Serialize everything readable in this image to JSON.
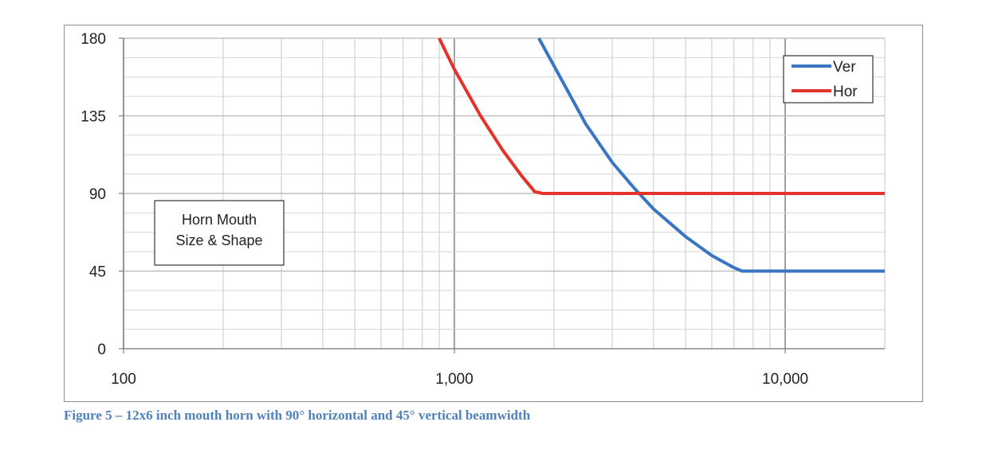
{
  "chart_data": {
    "type": "line",
    "x_scale": "log",
    "xlim": [
      100,
      20000
    ],
    "ylim": [
      0,
      180
    ],
    "grid": true,
    "legend_position": "top-right",
    "x_ticks": [
      {
        "value": 100,
        "label": "100"
      },
      {
        "value": 1000,
        "label": "1,000"
      },
      {
        "value": 10000,
        "label": "10,000"
      }
    ],
    "y_ticks": [
      {
        "value": 0,
        "label": "0"
      },
      {
        "value": 45,
        "label": "45"
      },
      {
        "value": 90,
        "label": "90"
      },
      {
        "value": 135,
        "label": "135"
      },
      {
        "value": 180,
        "label": "180"
      }
    ],
    "series": [
      {
        "name": "Ver",
        "color": "#3a75c4",
        "points": [
          [
            1800,
            180
          ],
          [
            2000,
            164
          ],
          [
            2500,
            130
          ],
          [
            3000,
            108
          ],
          [
            3500,
            93
          ],
          [
            4000,
            81
          ],
          [
            5000,
            65
          ],
          [
            6000,
            54
          ],
          [
            7000,
            47
          ],
          [
            7400,
            45
          ],
          [
            20000,
            45
          ]
        ]
      },
      {
        "name": "Hor",
        "color": "#e3332a",
        "points": [
          [
            900,
            180
          ],
          [
            1000,
            162
          ],
          [
            1200,
            135
          ],
          [
            1400,
            115
          ],
          [
            1600,
            100
          ],
          [
            1750,
            91
          ],
          [
            1850,
            90
          ],
          [
            20000,
            90
          ]
        ]
      }
    ],
    "annotation": "Horn Mouth Size & Shape"
  },
  "caption": "Figure 5 – 12x6 inch mouth horn with 90° horizontal and 45° vertical beamwidth"
}
